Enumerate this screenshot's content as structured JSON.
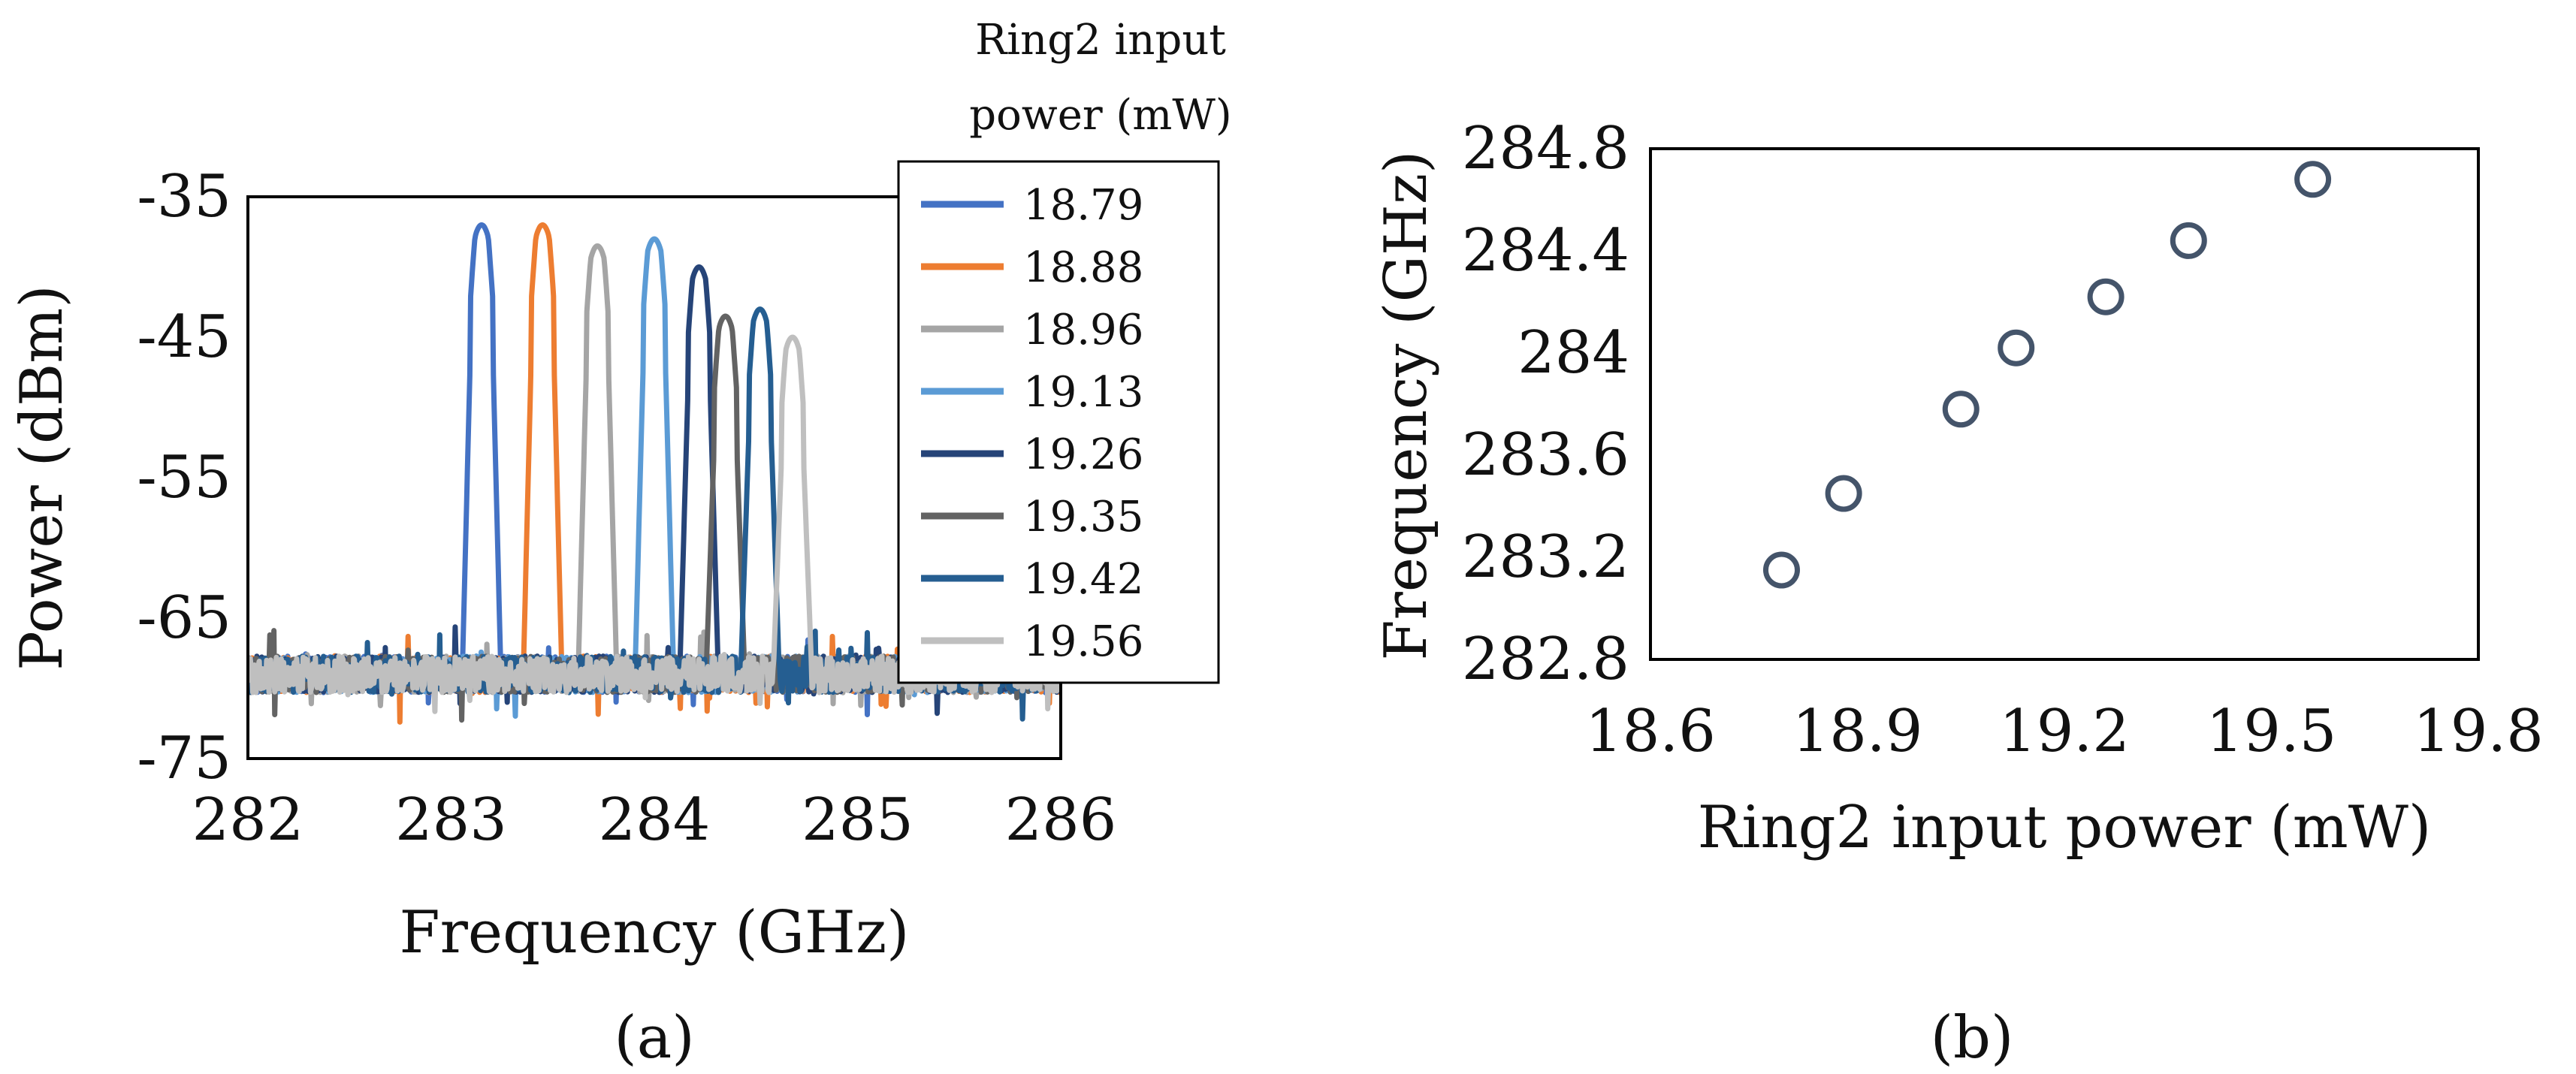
{
  "chart_data": [
    {
      "type": "line",
      "panel_label": "(a)",
      "xlabel": "Frequency (GHz)",
      "ylabel": "Power (dBm)",
      "xlim": [
        282,
        286
      ],
      "ylim": [
        -75,
        -35
      ],
      "xticks": [
        "282",
        "283",
        "284",
        "285",
        "286"
      ],
      "yticks": [
        "-35",
        "-45",
        "-55",
        "-65",
        "-75"
      ],
      "legend_title_lines": [
        "Ring2 input",
        "power (mW)"
      ],
      "legend_position": "right",
      "noise_floor_dbm": -69,
      "series": [
        {
          "name": "18.79",
          "color": "#4472c4",
          "peak_x": 283.15,
          "peak_y": -37
        },
        {
          "name": "18.88",
          "color": "#ed7d31",
          "peak_x": 283.45,
          "peak_y": -37
        },
        {
          "name": "18.96",
          "color": "#a5a5a5",
          "peak_x": 283.72,
          "peak_y": -38.5
        },
        {
          "name": "19.13",
          "color": "#5b9bd5",
          "peak_x": 284.0,
          "peak_y": -38
        },
        {
          "name": "19.26",
          "color": "#264478",
          "peak_x": 284.22,
          "peak_y": -40
        },
        {
          "name": "19.35",
          "color": "#636363",
          "peak_x": 284.35,
          "peak_y": -43.5
        },
        {
          "name": "19.42",
          "color": "#255e91",
          "peak_x": 284.52,
          "peak_y": -43
        },
        {
          "name": "19.56",
          "color": "#bfbfbf",
          "peak_x": 284.68,
          "peak_y": -45
        }
      ]
    },
    {
      "type": "scatter",
      "panel_label": "(b)",
      "xlabel": "Ring2 input power (mW)",
      "ylabel": "Frequency (GHz)",
      "xlim": [
        18.6,
        19.8
      ],
      "ylim": [
        282.8,
        284.8
      ],
      "xticks": [
        "18.6",
        "18.9",
        "19.2",
        "19.5",
        "19.8"
      ],
      "yticks": [
        "284.8",
        "284.4",
        "284",
        "283.6",
        "283.2",
        "282.8"
      ],
      "marker_color": "#44546a",
      "points": [
        {
          "x": 18.79,
          "y": 283.15
        },
        {
          "x": 18.88,
          "y": 283.45
        },
        {
          "x": 19.05,
          "y": 283.78
        },
        {
          "x": 19.13,
          "y": 284.02
        },
        {
          "x": 19.26,
          "y": 284.22
        },
        {
          "x": 19.38,
          "y": 284.44
        },
        {
          "x": 19.56,
          "y": 284.68
        }
      ]
    }
  ]
}
